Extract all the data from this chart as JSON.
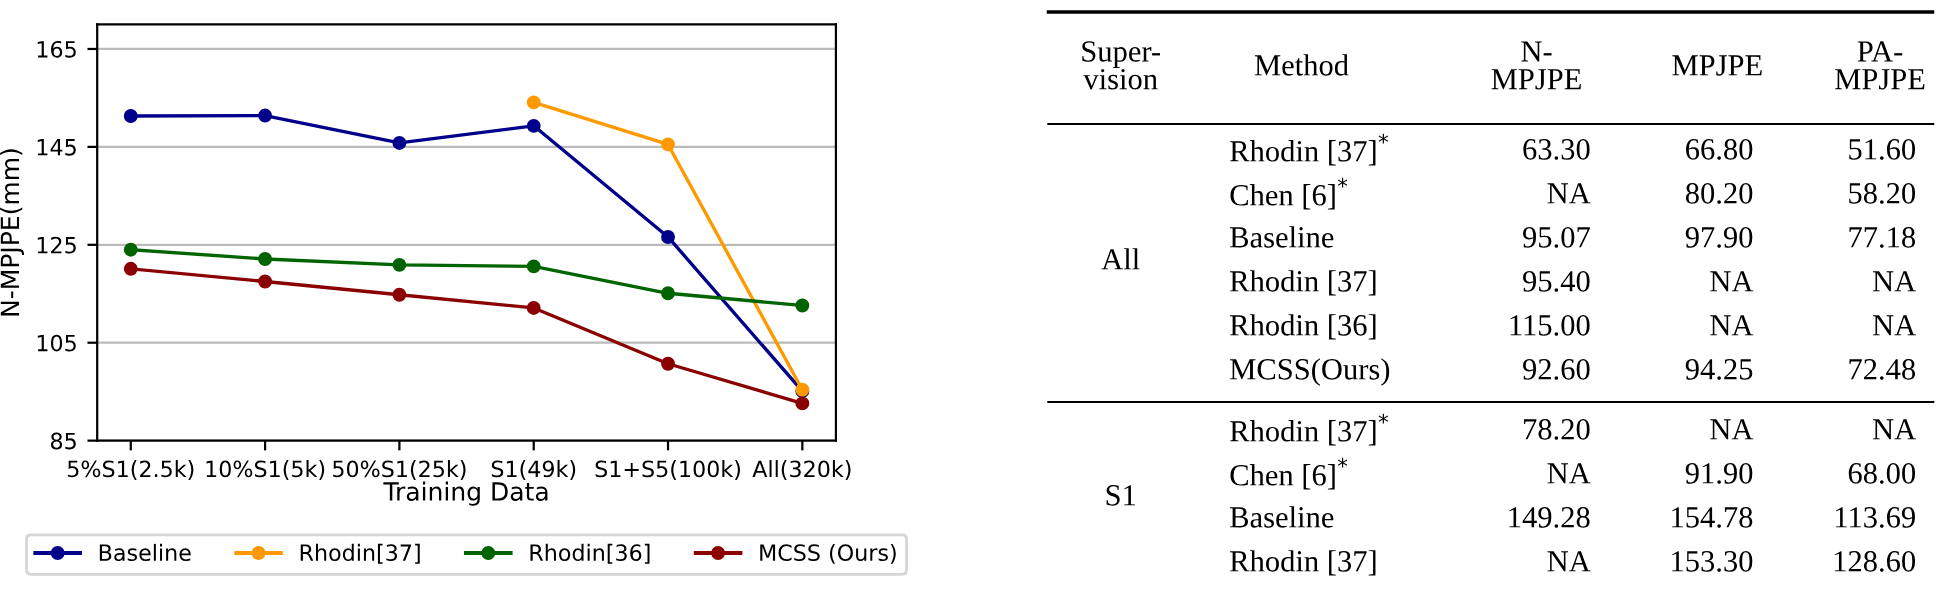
{
  "chart_data": [
    {
      "type": "line",
      "xlabel": "Training Data",
      "ylabel": "N-MPJPE(mm)",
      "categories": [
        "5%S1(2.5k)",
        "10%S1(5k)",
        "50%S1(25k)",
        "S1(49k)",
        "S1+S5(100k)",
        "All(320k)"
      ],
      "series": [
        {
          "name": "Baseline",
          "color": "#00008b",
          "values": [
            151.3,
            151.4,
            145.8,
            149.3,
            126.6,
            95.1
          ]
        },
        {
          "name": "Rhodin[37]",
          "color": "#ff9900",
          "values": [
            null,
            null,
            null,
            154.1,
            145.5,
            95.4
          ]
        },
        {
          "name": "Rhodin[36]",
          "color": "#006400",
          "values": [
            124.0,
            122.1,
            120.9,
            120.6,
            115.1,
            112.6
          ]
        },
        {
          "name": "MCSS (Ours)",
          "color": "#8b0000",
          "values": [
            120.1,
            117.5,
            114.8,
            112.1,
            100.7,
            92.6
          ]
        }
      ],
      "ylim": [
        85,
        170
      ],
      "yticks": [
        85,
        105,
        125,
        145,
        165
      ],
      "grid": "y",
      "legend": "bottom",
      "marker": "circle",
      "line_style": "solid"
    },
    {
      "type": "other",
      "categories": [
        "Super-\nvision",
        "Method",
        "N-\nMPJPE",
        "MPJPE",
        "PA-\nMPJPE"
      ],
      "cell_labels": [
        [
          "All",
          "Rhodin [37]$^{*}$",
          "63.30",
          "66.80",
          "51.60"
        ],
        [
          null,
          "Chen [6]$^{*}$",
          "NA",
          "80.20",
          "58.20"
        ],
        [
          null,
          "Baseline",
          "95.07",
          "97.90",
          "77.18"
        ],
        [
          null,
          "Rhodin [37]",
          "95.40",
          "NA",
          "NA"
        ],
        [
          null,
          "Rhodin [36]",
          "115.00",
          "NA",
          "NA"
        ],
        [
          null,
          "MCSS(Ours)",
          "92.60",
          "94.25",
          "72.48"
        ],
        [
          "S1",
          "Rhodin [37]$^{*}$",
          "78.20",
          "NA",
          "NA"
        ],
        [
          null,
          "Chen [6]$^{*}$",
          "NA",
          "91.90",
          "68.00"
        ],
        [
          null,
          "Baseline",
          "149.28",
          "154.78",
          "113.69"
        ],
        [
          null,
          "Rhodin [37]",
          "NA",
          "153.30",
          "128.60"
        ]
      ]
    }
  ]
}
